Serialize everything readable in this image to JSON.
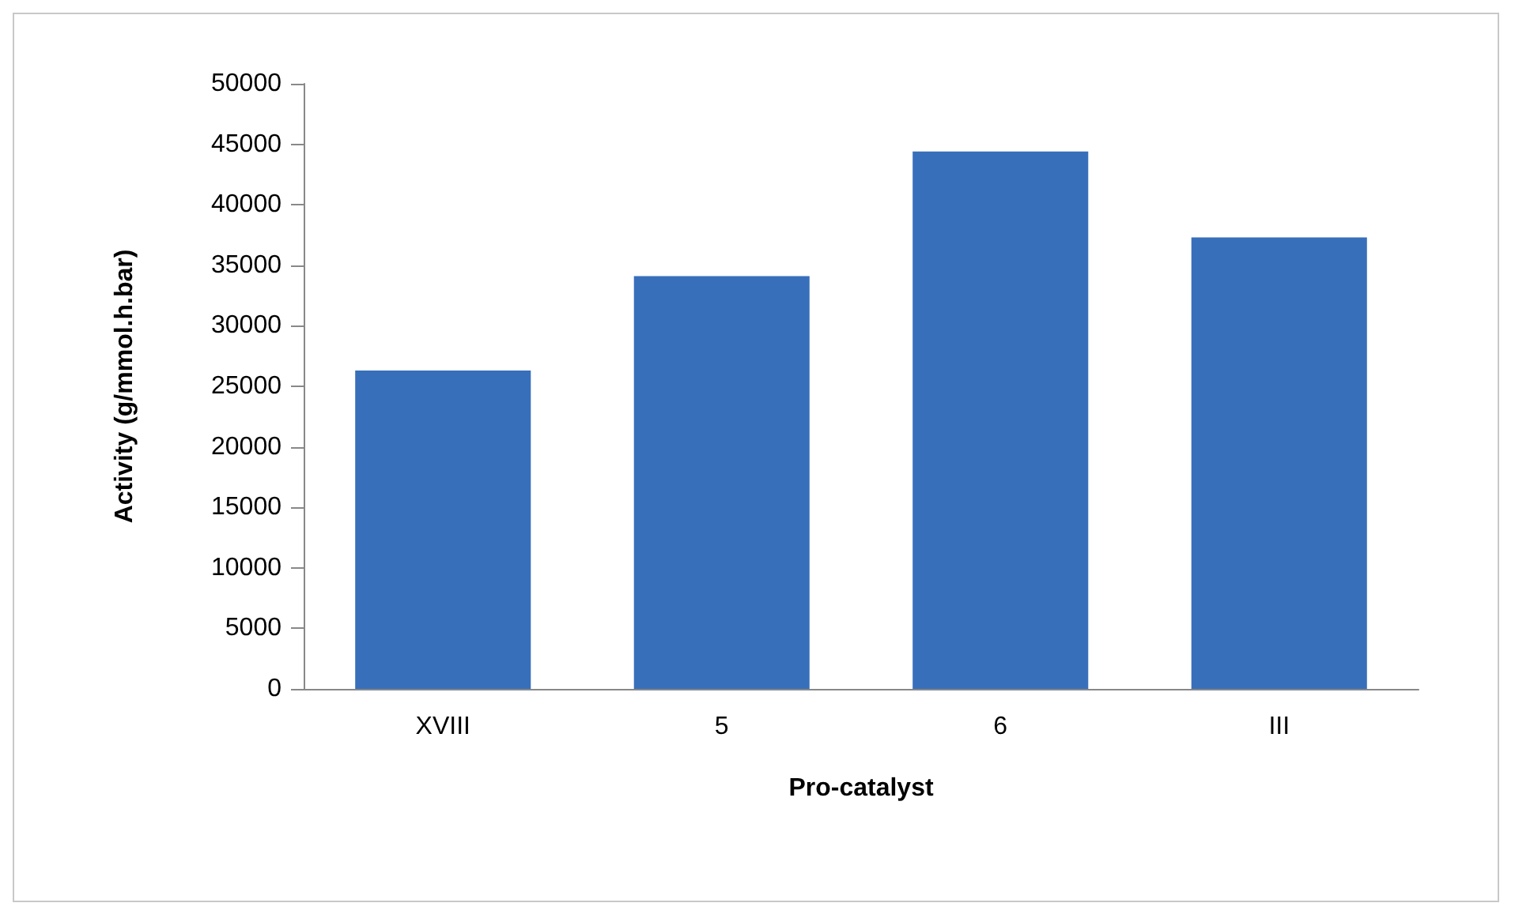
{
  "chart_data": {
    "type": "bar",
    "xlabel": "Pro-catalyst",
    "ylabel": "Activity (g/mmol.h.bar)",
    "categories": [
      "XVIII",
      "5",
      "6",
      "III"
    ],
    "values": [
      26300,
      34100,
      44400,
      37300
    ],
    "color": "#386fbb",
    "ylim": [
      0,
      50000
    ],
    "yticks": [
      0,
      5000,
      10000,
      15000,
      20000,
      25000,
      30000,
      35000,
      40000,
      45000,
      50000
    ],
    "grid": false
  }
}
